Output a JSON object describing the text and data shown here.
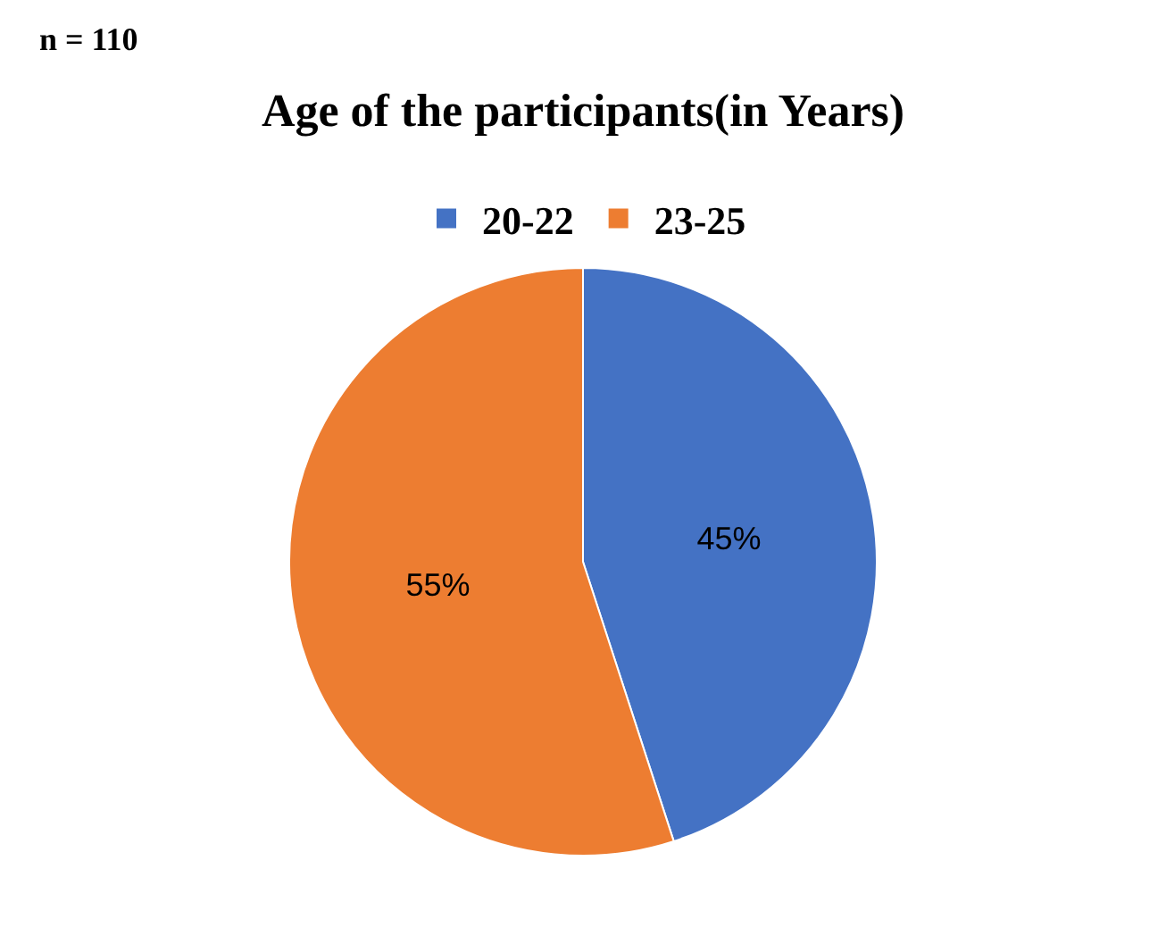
{
  "chart_data": {
    "type": "pie",
    "title": "Age of the participants(in Years)",
    "categories": [
      "20-22",
      "23-25"
    ],
    "values": [
      45,
      55
    ],
    "colors": [
      "#4472c4",
      "#ed7d31"
    ],
    "value_labels": [
      "45%",
      "55%"
    ],
    "legend": "top",
    "annotations": [
      "n = 110"
    ]
  }
}
